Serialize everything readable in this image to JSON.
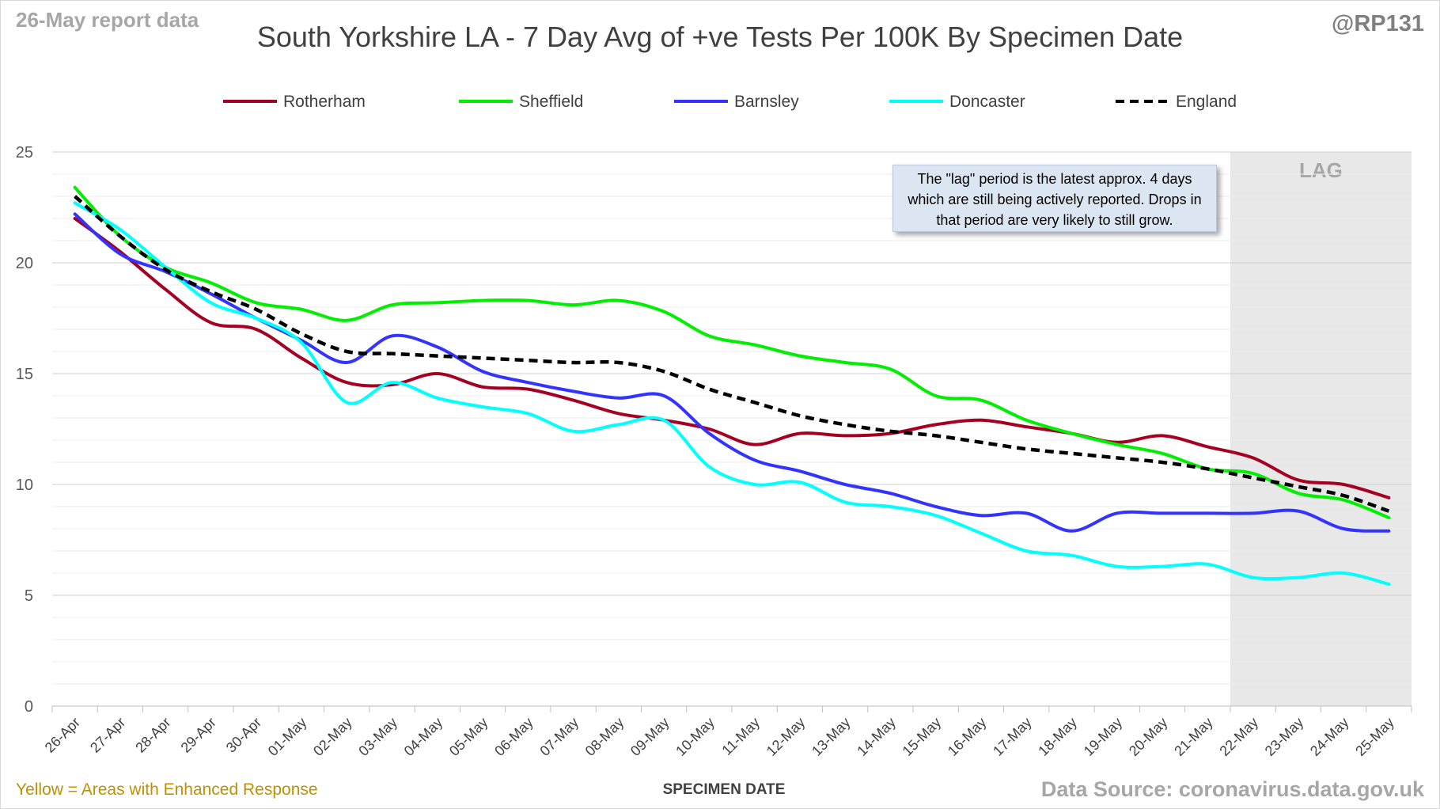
{
  "header": {
    "report_label": "26-May report data",
    "handle": "@RP131"
  },
  "footer": {
    "enhanced_note": "Yellow = Areas with Enhanced Response",
    "source": "Data Source: coronavirus.data.gov.uk"
  },
  "annotation": {
    "text": "The \"lag\" period is the latest approx. 4 days which are still being actively reported. Drops in that period are very likely to still grow.",
    "lag_label": "LAG",
    "lag_start": "21-May",
    "lag_end": "25-May"
  },
  "chart_data": {
    "type": "line",
    "title": "South Yorkshire LA - 7 Day Avg of +ve Tests Per 100K By Specimen Date",
    "xlabel": "SPECIMEN DATE",
    "ylabel": "",
    "ylim": [
      0,
      25
    ],
    "yticks": [
      0,
      5,
      10,
      15,
      20,
      25
    ],
    "grid": true,
    "legend_position": "top",
    "categories": [
      "26-Apr",
      "27-Apr",
      "28-Apr",
      "29-Apr",
      "30-Apr",
      "01-May",
      "02-May",
      "03-May",
      "04-May",
      "05-May",
      "06-May",
      "07-May",
      "08-May",
      "09-May",
      "10-May",
      "11-May",
      "12-May",
      "13-May",
      "14-May",
      "15-May",
      "16-May",
      "17-May",
      "18-May",
      "19-May",
      "20-May",
      "21-May",
      "22-May",
      "23-May",
      "24-May",
      "25-May"
    ],
    "series": [
      {
        "name": "Rotherham",
        "color": "#a50021",
        "dash": "solid",
        "values": [
          22.0,
          20.5,
          18.8,
          17.3,
          17.0,
          15.7,
          14.6,
          14.5,
          15.0,
          14.4,
          14.3,
          13.8,
          13.2,
          12.9,
          12.5,
          11.8,
          12.3,
          12.2,
          12.3,
          12.7,
          12.9,
          12.6,
          12.3,
          11.9,
          12.2,
          11.7,
          11.2,
          10.2,
          10.0,
          9.4
        ]
      },
      {
        "name": "Sheffield",
        "color": "#00ee00",
        "dash": "solid",
        "values": [
          23.4,
          21.2,
          19.8,
          19.1,
          18.2,
          17.9,
          17.4,
          18.1,
          18.2,
          18.3,
          18.3,
          18.1,
          18.3,
          17.8,
          16.7,
          16.3,
          15.8,
          15.5,
          15.2,
          14.0,
          13.8,
          12.9,
          12.3,
          11.8,
          11.4,
          10.7,
          10.5,
          9.6,
          9.3,
          8.5
        ]
      },
      {
        "name": "Barnsley",
        "color": "#3333ff",
        "dash": "solid",
        "values": [
          22.2,
          20.4,
          19.6,
          18.6,
          17.5,
          16.5,
          15.5,
          16.7,
          16.2,
          15.1,
          14.6,
          14.2,
          13.9,
          14.0,
          12.3,
          11.1,
          10.6,
          10.0,
          9.6,
          9.0,
          8.6,
          8.7,
          7.9,
          8.7,
          8.7,
          8.7,
          8.7,
          8.8,
          8.0,
          7.9
        ]
      },
      {
        "name": "Doncaster",
        "color": "#00ffff",
        "dash": "solid",
        "values": [
          22.7,
          21.5,
          19.8,
          18.2,
          17.5,
          16.4,
          13.7,
          14.6,
          13.9,
          13.5,
          13.2,
          12.4,
          12.7,
          12.9,
          10.8,
          10.0,
          10.1,
          9.2,
          9.0,
          8.6,
          7.8,
          7.0,
          6.8,
          6.3,
          6.3,
          6.4,
          5.8,
          5.8,
          6.0,
          5.5
        ]
      },
      {
        "name": "England",
        "color": "#000000",
        "dash": "dashed",
        "values": [
          23.0,
          21.2,
          19.7,
          18.7,
          17.9,
          16.8,
          16.0,
          15.9,
          15.8,
          15.7,
          15.6,
          15.5,
          15.5,
          15.1,
          14.3,
          13.7,
          13.1,
          12.7,
          12.4,
          12.2,
          11.9,
          11.6,
          11.4,
          11.2,
          11.0,
          10.7,
          10.3,
          9.9,
          9.5,
          8.8
        ]
      }
    ]
  }
}
